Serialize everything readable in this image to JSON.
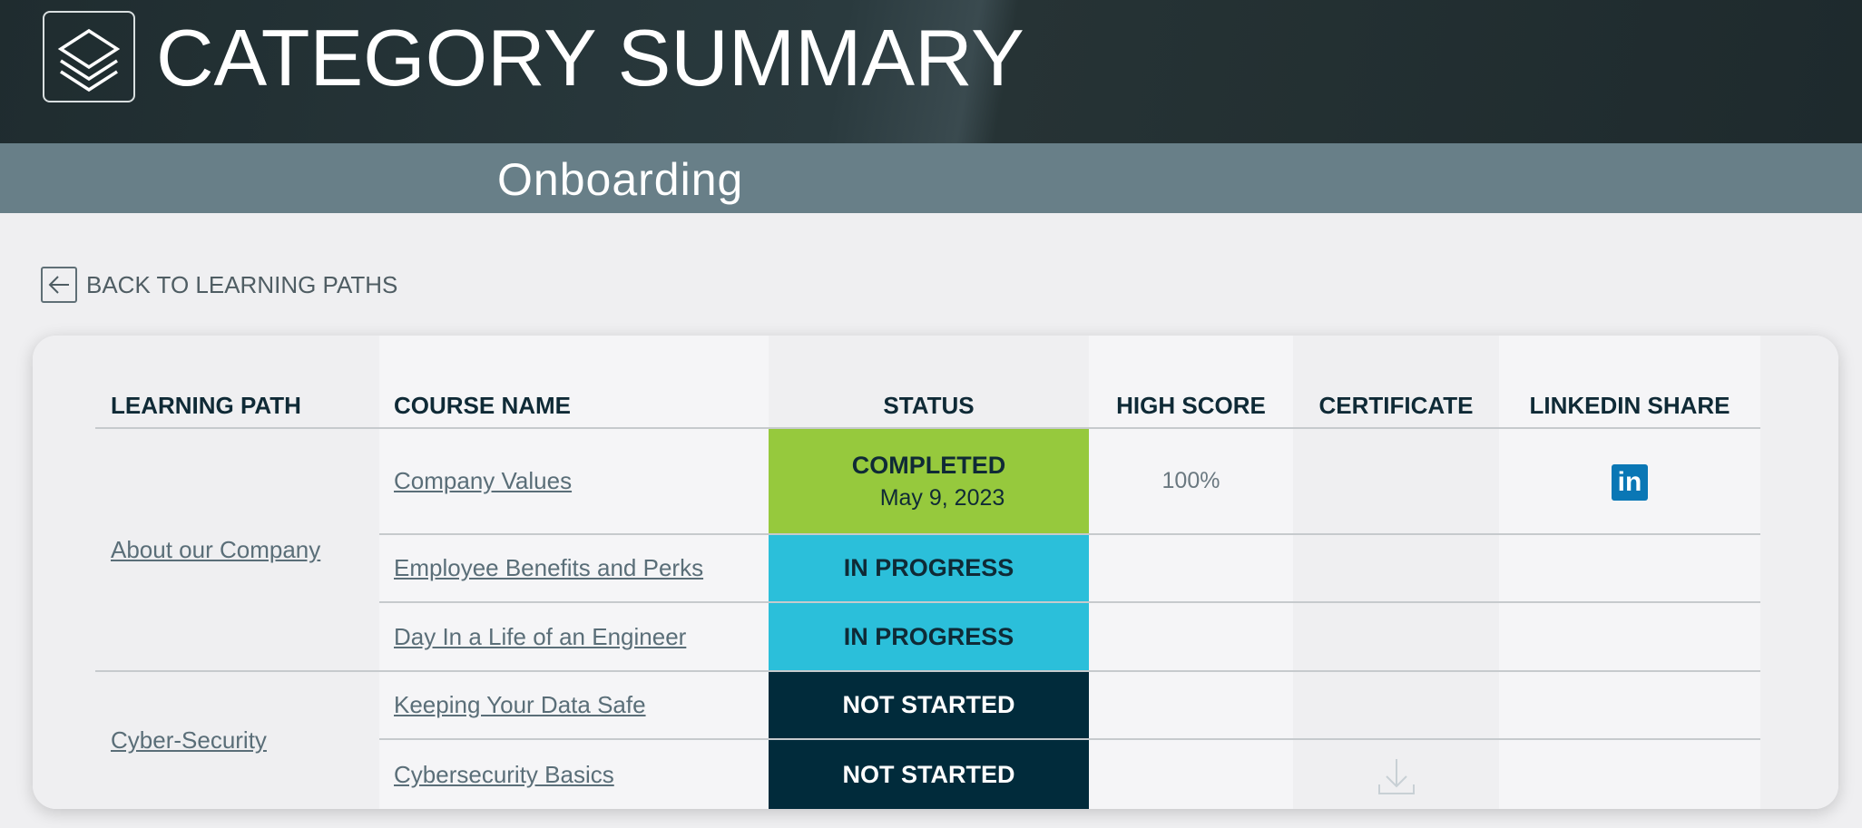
{
  "header": {
    "title": "CATEGORY SUMMARY",
    "logo_icon": "layers-icon"
  },
  "category": {
    "name": "Onboarding"
  },
  "back_link": {
    "label": "BACK TO LEARNING PATHS",
    "icon": "arrow-left-icon"
  },
  "table": {
    "columns": [
      "LEARNING PATH",
      "COURSE NAME",
      "STATUS",
      "HIGH SCORE",
      "CERTIFICATE",
      "LINKEDIN SHARE"
    ],
    "groups": [
      {
        "path": "About our Company"
      },
      {
        "path": "Cyber-Security"
      }
    ],
    "rows": [
      {
        "course": "Company Values",
        "status": "COMPLETED",
        "date": "May 9, 2023",
        "high_score": "100%",
        "linkedin": true
      },
      {
        "course": "Employee Benefits and Perks",
        "status": "IN PROGRESS"
      },
      {
        "course": "Day In a Life of an Engineer",
        "status": "IN PROGRESS"
      },
      {
        "course": "Keeping Your Data Safe",
        "status": "NOT STARTED"
      },
      {
        "course": "Cybersecurity Basics",
        "status": "NOT STARTED",
        "certificate_icon": "download-icon"
      }
    ]
  },
  "colors": {
    "completed": "#96c93d",
    "in_progress": "#2bbfda",
    "not_started": "#012b3b",
    "linkedin": "#0a77b5"
  }
}
